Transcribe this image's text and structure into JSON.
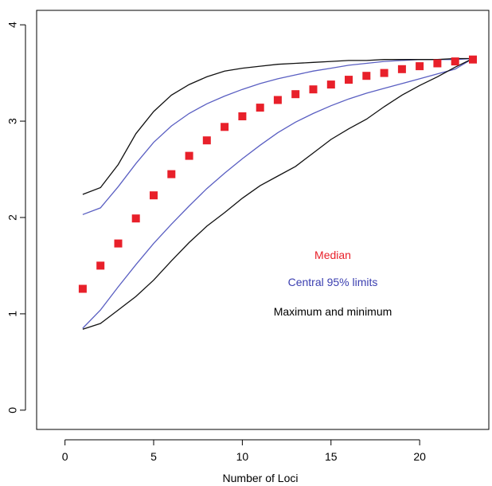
{
  "chart_data": {
    "type": "line",
    "title": "",
    "xlabel": "Number of Loci",
    "ylabel": "",
    "xlim": [
      -1.6,
      23.9
    ],
    "ylim": [
      -0.2,
      4.15
    ],
    "xticks": [
      0,
      5,
      10,
      15,
      20
    ],
    "yticks": [
      0,
      1,
      2,
      3,
      4
    ],
    "grid": false,
    "x": [
      1,
      2,
      3,
      4,
      5,
      6,
      7,
      8,
      9,
      10,
      11,
      12,
      13,
      14,
      15,
      16,
      17,
      18,
      19,
      20,
      21,
      22,
      23
    ],
    "series": [
      {
        "name": "Median",
        "style": "points",
        "color": "#e8202a",
        "values": [
          1.26,
          1.5,
          1.73,
          1.99,
          2.23,
          2.45,
          2.64,
          2.8,
          2.94,
          3.05,
          3.14,
          3.22,
          3.28,
          3.33,
          3.38,
          3.43,
          3.47,
          3.5,
          3.54,
          3.57,
          3.6,
          3.62,
          3.64
        ]
      },
      {
        "name": "Central 95% limits (upper)",
        "style": "line",
        "color": "#5a5fc2",
        "values": [
          2.03,
          2.1,
          2.32,
          2.56,
          2.78,
          2.95,
          3.08,
          3.18,
          3.26,
          3.33,
          3.39,
          3.44,
          3.48,
          3.52,
          3.55,
          3.58,
          3.6,
          3.62,
          3.63,
          3.64,
          3.64,
          3.64,
          3.65
        ]
      },
      {
        "name": "Central 95% limits (lower)",
        "style": "line",
        "color": "#5a5fc2",
        "values": [
          0.85,
          1.04,
          1.28,
          1.51,
          1.73,
          1.93,
          2.12,
          2.3,
          2.46,
          2.61,
          2.75,
          2.88,
          2.99,
          3.08,
          3.16,
          3.23,
          3.29,
          3.34,
          3.39,
          3.44,
          3.49,
          3.54,
          3.65
        ]
      },
      {
        "name": "Maximum",
        "style": "line",
        "color": "#111111",
        "values": [
          2.24,
          2.31,
          2.55,
          2.87,
          3.1,
          3.27,
          3.38,
          3.46,
          3.52,
          3.55,
          3.57,
          3.59,
          3.6,
          3.61,
          3.62,
          3.63,
          3.63,
          3.64,
          3.64,
          3.64,
          3.64,
          3.65,
          3.65
        ]
      },
      {
        "name": "Minimum",
        "style": "line",
        "color": "#111111",
        "values": [
          0.84,
          0.9,
          1.04,
          1.18,
          1.35,
          1.55,
          1.74,
          1.91,
          2.05,
          2.2,
          2.33,
          2.43,
          2.53,
          2.67,
          2.81,
          2.92,
          3.02,
          3.15,
          3.27,
          3.37,
          3.46,
          3.56,
          3.65
        ]
      }
    ],
    "legend": {
      "placement": "center-right",
      "entries": [
        {
          "text": "Median",
          "color": "#e8202a"
        },
        {
          "text": "Central 95% limits",
          "color": "#3b3fb0"
        },
        {
          "text": "Maximum and minimum",
          "color": "#000000"
        }
      ]
    }
  }
}
